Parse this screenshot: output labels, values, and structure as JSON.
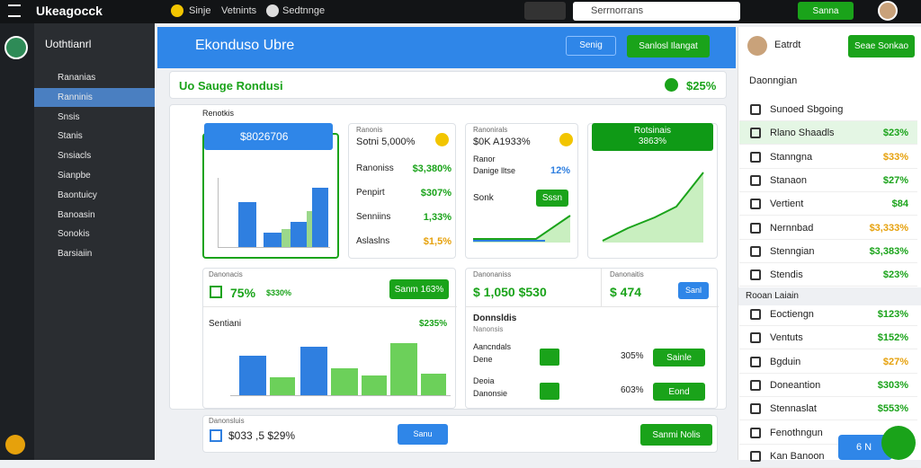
{
  "topbar": {
    "brand": "Ukeagocck",
    "nav": [
      "Sinje",
      "Vetnints",
      "Sedtnnge"
    ],
    "search": "Serrnorrans",
    "button": "Sanna"
  },
  "sidebar": {
    "title": "Uothtianrl",
    "items": [
      "Rananias",
      "Ranninis",
      "Snsis",
      "Stanis",
      "Snsiacls",
      "Sianpbe",
      "Baontuicy",
      "Banoasin",
      "Sonokis",
      "Barsiaiin"
    ]
  },
  "header": {
    "title": "Ekonduso Ubre",
    "button": "Senig",
    "action": "Sanlosl Ilangat"
  },
  "summary": {
    "title": "Uo Sauge Rondusi",
    "value": "$25%"
  },
  "section": "Renotkis",
  "card1": {
    "tag": "$8026706"
  },
  "card2": {
    "title": "Ranonis",
    "headline": "Sotni 5,000%",
    "rows": [
      [
        "Ranoniss",
        "$3,380%"
      ],
      [
        "Penpirt",
        "$307%"
      ],
      [
        "Senniins",
        "1,33%"
      ],
      [
        "Aslaslns",
        "$1,5%"
      ]
    ]
  },
  "card3": {
    "title": "Ranonirals",
    "headline": "$0K A1933%",
    "label": "Ranor",
    "sub": "Danige lltse",
    "pct": "12%",
    "row": "Sonk",
    "button": "Sssn"
  },
  "card4": {
    "title": "Rotsinais",
    "value": "3863%"
  },
  "card5": {
    "title": "Danonacis",
    "value": "75%",
    "sub": "$330%",
    "button": "Sanm 163%",
    "chart_title": "Sentiani",
    "chart_value": "$235%"
  },
  "card6": {
    "title": "Danonaniss",
    "value": "$ 1,050 $530",
    "title2": "Danonaitis",
    "value2": "$ 474",
    "button": "Sanl",
    "section": "Donnsldis",
    "sub": "Nanonsis",
    "rows": [
      [
        "Aancndals",
        "Dene",
        "305%",
        "Sainle"
      ],
      [
        "Deoia",
        "Danonsie",
        "603%",
        "Eond"
      ]
    ]
  },
  "card7": {
    "title": "Danonsluis",
    "value": "$033 ,5 $29%",
    "button": "Sanu",
    "action": "Sanmi Nolis"
  },
  "right": {
    "user": "Eatrdt",
    "button": "Seae Sonkao",
    "section": "Daonngian",
    "items": [
      [
        "Sunoed Sbgoing",
        ""
      ],
      [
        "Rlano Shaadls",
        "$23%"
      ],
      [
        "Stanngna",
        "$33%"
      ],
      [
        "Stanaon",
        "$27%"
      ],
      [
        "Vertient",
        "$84"
      ],
      [
        "Nernnbad",
        "$3,333%"
      ],
      [
        "Stenngian",
        "$3,383%"
      ],
      [
        "Stendis",
        "$23%"
      ]
    ],
    "section2": "Rooan Laiain",
    "items2": [
      [
        "Eoctiengn",
        "$123%"
      ],
      [
        "Ventuts",
        "$152%"
      ],
      [
        "Bgduin",
        "$27%"
      ],
      [
        "Doneantion",
        "$303%"
      ],
      [
        "Stennaslat",
        "$553%"
      ],
      [
        "Fenothngun",
        ""
      ],
      [
        "Kan Banoon",
        ""
      ]
    ],
    "float": "6 N"
  }
}
